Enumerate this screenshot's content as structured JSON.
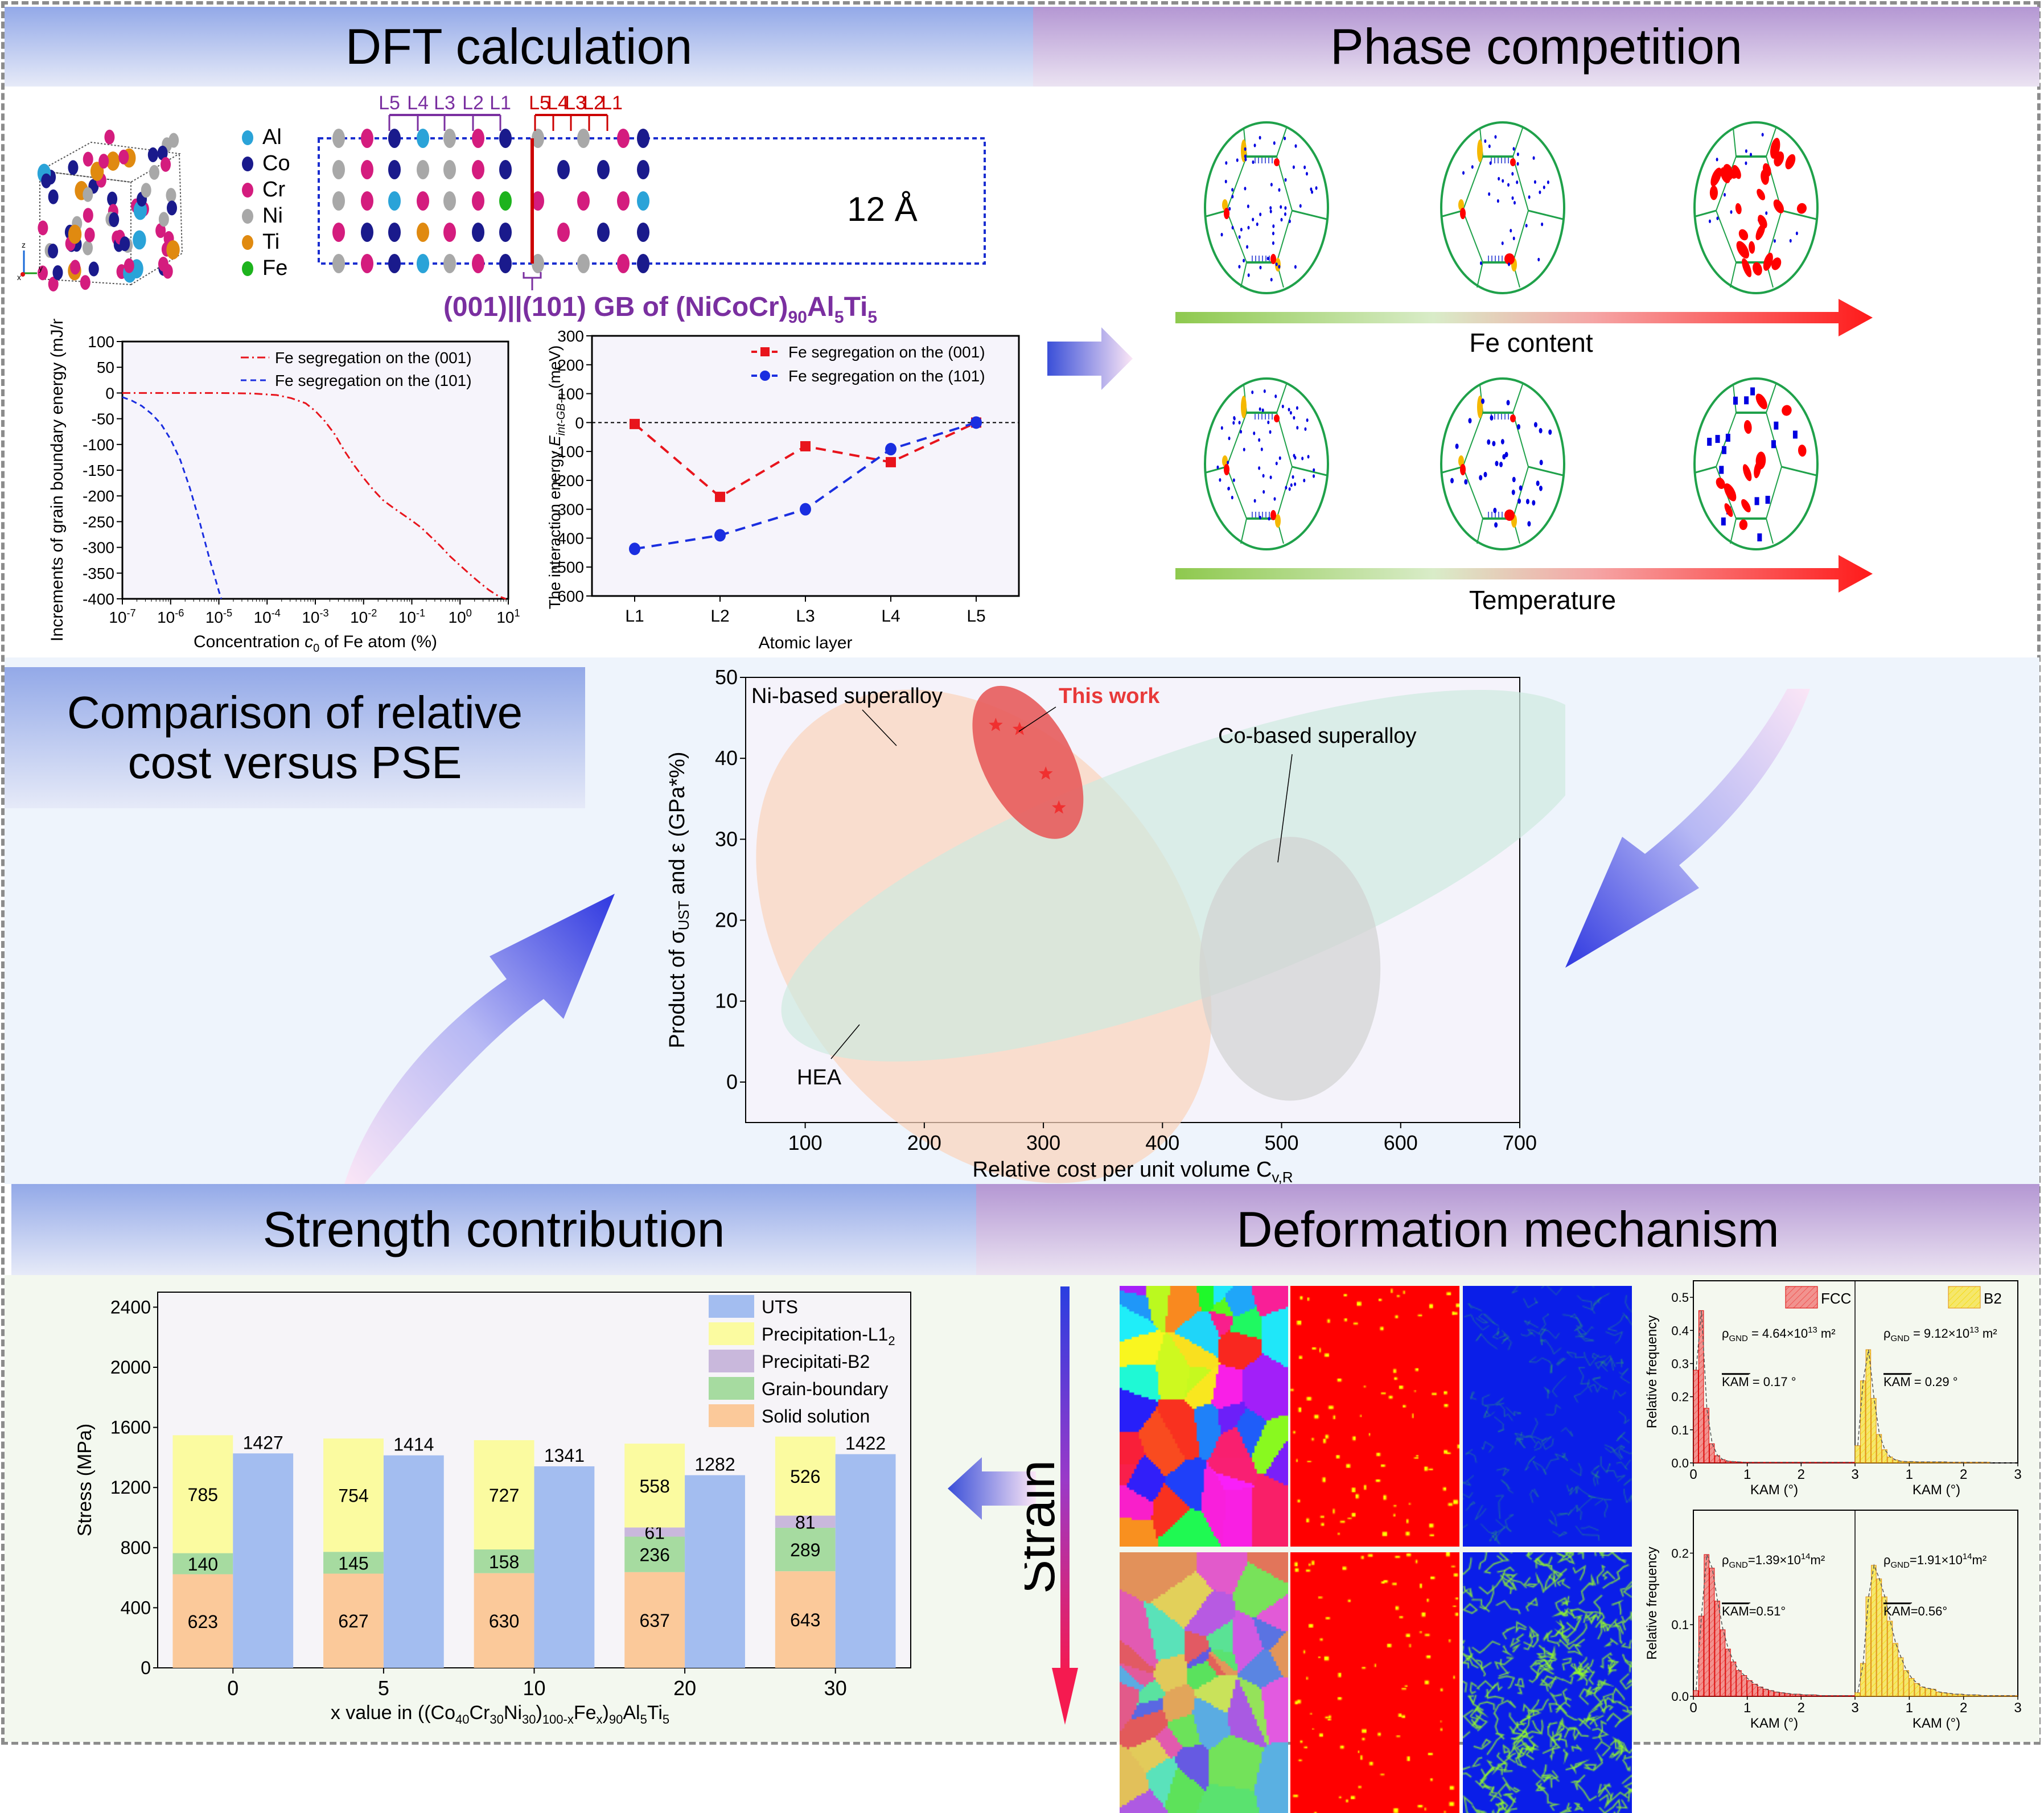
{
  "headers": {
    "dft": "DFT calculation",
    "phase": "Phase competition",
    "comparison_line1": "Comparison of relative",
    "comparison_line2": "cost versus PSE",
    "strength": "Strength contribution",
    "deformation": "Deformation mechanism"
  },
  "colors": {
    "header_blue_top": "#93a9e8",
    "header_purple_top": "#b497d3",
    "grain_boundary": "#1fa14a",
    "l12_precipitate": "#0000e0",
    "b2_precipitate": "#ff0000",
    "segregation": "#f5b800"
  },
  "dft": {
    "elements": [
      {
        "name": "Al",
        "color": "#2aa3d8"
      },
      {
        "name": "Co",
        "color": "#1a1a8c"
      },
      {
        "name": "Cr",
        "color": "#d41c7e"
      },
      {
        "name": "Ni",
        "color": "#a8a8a8"
      },
      {
        "name": "Ti",
        "color": "#e08a10"
      },
      {
        "name": "Fe",
        "color": "#1db31d"
      }
    ],
    "layers_left": [
      "L5",
      "L4",
      "L3",
      "L2",
      "L1"
    ],
    "layers_right": [
      "L5",
      "L4",
      "L3",
      "L2",
      "L1"
    ],
    "vacuum_label": "12 Å",
    "gb_title": "(001)||(101) GB of (NiCoCr)",
    "gb_sub1": "90",
    "gb_mid": "Al",
    "gb_sub2": "5",
    "gb_end": "Ti",
    "gb_sub3": "5",
    "axis_labels": {
      "x": "x",
      "y": "y",
      "z": "z"
    }
  },
  "phase": {
    "row1_label": "Fe content",
    "row2_label": "Temperature"
  },
  "deformation": {
    "strain_label": "Strain"
  },
  "chart_data": [
    {
      "id": "gb-energy",
      "type": "line",
      "title": "",
      "xlabel": "Concentration c0 of Fe atom (%)",
      "xlabel_parts": [
        "Concentration ",
        "c",
        "0",
        " of Fe atom (%)"
      ],
      "ylabel": "Increments of grain boundary energy (mJ/m²)",
      "xscale": "log",
      "xlim_exp": [
        -7,
        1
      ],
      "xticks": [
        "10^-7",
        "10^-6",
        "10^-5",
        "10^-4",
        "10^-3",
        "10^-2",
        "10^-1",
        "10^0",
        "10^1"
      ],
      "ylim": [
        -400,
        100
      ],
      "yticks": [
        100,
        50,
        0,
        -50,
        -100,
        -150,
        -200,
        -250,
        -300,
        -350,
        -400
      ],
      "legend_position": "top-right",
      "series": [
        {
          "name": "Fe segregation on the (001)",
          "color": "#e8141c",
          "dash": "dashdot",
          "log10x": [
            -7,
            -6,
            -5,
            -4.3,
            -3.8,
            -3.5,
            -3.2,
            -3.0,
            -2.8,
            -2.6,
            -2.4,
            -2.2,
            -2.0,
            -1.8,
            -1.6,
            -1.4,
            -1.2,
            -1.0,
            -0.8,
            -0.6,
            -0.4,
            -0.2,
            0,
            0.2,
            0.4,
            0.6,
            0.8,
            0.95
          ],
          "y": [
            0,
            0,
            0,
            -1,
            -4,
            -10,
            -20,
            -35,
            -55,
            -80,
            -112,
            -140,
            -165,
            -188,
            -208,
            -222,
            -235,
            -248,
            -262,
            -280,
            -298,
            -318,
            -335,
            -352,
            -368,
            -383,
            -395,
            -400
          ]
        },
        {
          "name": "Fe segregation on the (101)",
          "color": "#1a2ee0",
          "dash": "dashed",
          "log10x": [
            -7,
            -6.8,
            -6.6,
            -6.4,
            -6.2,
            -6.0,
            -5.8,
            -5.6,
            -5.4,
            -5.2,
            -5.0,
            -4.95
          ],
          "y": [
            -8,
            -15,
            -25,
            -40,
            -60,
            -90,
            -130,
            -185,
            -250,
            -320,
            -385,
            -400
          ]
        }
      ]
    },
    {
      "id": "interaction-energy",
      "type": "line",
      "xlabel": "Atomic layer",
      "ylabel_prefix": "The interaction energy ",
      "ylabel_var": "E",
      "ylabel_sub": "int-GB-n",
      "ylabel_suffix": " (meV)",
      "categories": [
        "L1",
        "L2",
        "L3",
        "L4",
        "L5"
      ],
      "ylim": [
        -600,
        300
      ],
      "yticks": [
        300,
        200,
        100,
        0,
        -100,
        -200,
        -300,
        -400,
        -500,
        -600
      ],
      "legend_position": "top-right",
      "series": [
        {
          "name": "Fe segregation on the (001)",
          "color": "#e8141c",
          "marker": "square",
          "values": [
            -5,
            -257,
            -82,
            -137,
            0
          ]
        },
        {
          "name": "Fe segregation on the (101)",
          "color": "#1a2ee0",
          "marker": "circle",
          "values": [
            -437,
            -390,
            -300,
            -92,
            0
          ]
        }
      ]
    },
    {
      "id": "cost-vs-pse",
      "type": "scatter",
      "xlabel_main": "Relative cost per unit volume C",
      "xlabel_sub": "v,R",
      "ylabel": "Product of σUST and ε (GPa*%)",
      "ylabel_pre": "Product of σ",
      "ylabel_sub": "UST",
      "ylabel_post": " and ε (GPa*%)",
      "xlim": [
        50,
        700
      ],
      "ylim": [
        -5,
        50
      ],
      "xticks": [
        100,
        200,
        300,
        400,
        500,
        600,
        700
      ],
      "yticks": [
        0,
        10,
        20,
        30,
        40,
        50
      ],
      "regions": [
        {
          "name": "HEA",
          "color": "#fbd3bb",
          "cx": 250,
          "cy": 18,
          "rx_cost": 230,
          "ry_pse": 24,
          "angle_deg": 52
        },
        {
          "name": "Ni-based superalloy",
          "color": "#cfeadf",
          "cx": 420,
          "cy": 25.5,
          "rx_cost": 360,
          "ry_pse": 15,
          "angle_deg": -20
        },
        {
          "name": "Co-based superalloy",
          "color": "#d2d2d2",
          "cx": 507,
          "cy": 14,
          "rx_cost": 76,
          "ry_pse": 16.3,
          "angle_deg": 0
        },
        {
          "name": "This work",
          "color": "#e75c5c",
          "cx": 287,
          "cy": 39.5,
          "rx_cost": 70,
          "ry_pse": 5.5,
          "angle_deg": 62
        }
      ],
      "annotations": [
        {
          "text": "Ni-based superalloy",
          "color": "#000000"
        },
        {
          "text": "This work",
          "color": "#e83a3a"
        },
        {
          "text": "Co-based superalloy",
          "color": "#000000"
        },
        {
          "text": "HEA",
          "color": "#000000"
        }
      ],
      "points": [
        {
          "x": 260,
          "y": 44.1
        },
        {
          "x": 280,
          "y": 43.6
        },
        {
          "x": 302,
          "y": 38.1
        },
        {
          "x": 313,
          "y": 33.9
        }
      ]
    },
    {
      "id": "strength-contribution",
      "type": "bar",
      "xlabel": "x value in ((Co40Cr30Ni30)100-xFex)90Al5Ti5",
      "ylabel": "Stress (MPa)",
      "categories": [
        "0",
        "5",
        "10",
        "20",
        "30"
      ],
      "ylim": [
        0,
        2500
      ],
      "yticks": [
        0,
        400,
        800,
        1200,
        1600,
        2000,
        2400
      ],
      "legend_position": "top-right",
      "stack_series": [
        {
          "name": "Solid solution",
          "color": "#fbc99a",
          "values": [
            623,
            627,
            630,
            637,
            643
          ]
        },
        {
          "name": "Grain-boundary",
          "color": "#a6dba0",
          "values": [
            140,
            145,
            158,
            236,
            289
          ]
        },
        {
          "name": "Precipitati-B2",
          "color": "#c9b8dc",
          "values": [
            0,
            0,
            0,
            61,
            81
          ]
        },
        {
          "name": "Precipitation-L1",
          "sub": "2",
          "color": "#fbfba0",
          "values": [
            785,
            754,
            727,
            558,
            526
          ]
        }
      ],
      "uts_series": {
        "name": "UTS",
        "color": "#a3bdf0",
        "values": [
          1427,
          1414,
          1341,
          1282,
          1422
        ]
      }
    },
    {
      "id": "kam-top",
      "type": "bar",
      "ylabel": "Relative frequency",
      "xlabel": "KAM (°)",
      "panels": [
        {
          "legend": "FCC",
          "color": "#ef4040",
          "rho_pre": "ρ",
          "rho_sub": "GND",
          "rho_val": " = 4.64×10",
          "rho_exp": "13",
          "rho_unit": " m²",
          "kam_text": "KAM",
          "kam_val": " = 0.17 °",
          "bins": [
            0.28,
            0.46,
            0.165,
            0.058,
            0.022,
            0.01,
            0.005,
            0.004,
            0.003,
            0.002,
            0.002,
            0.002,
            0.002,
            0.002,
            0.002,
            0.002,
            0.002,
            0.002,
            0.002,
            0.002,
            0.002,
            0.002,
            0.002,
            0.002,
            0.002,
            0.002,
            0.002,
            0.002,
            0.002,
            0.002
          ]
        },
        {
          "legend": "B2",
          "color": "#f5d800",
          "rho_pre": "ρ",
          "rho_sub": "GND",
          "rho_val": " = 9.12×10",
          "rho_exp": "13",
          "rho_unit": " m²",
          "kam_text": "KAM",
          "kam_val": " = 0.29 °",
          "bins": [
            0.052,
            0.248,
            0.342,
            0.195,
            0.086,
            0.04,
            0.018,
            0.009,
            0.005,
            0.004,
            0.004,
            0.003,
            0.003,
            0.003,
            0.003,
            0.003,
            0.003,
            0.002,
            0.002,
            0.002,
            0.002,
            0.002,
            0.002,
            0.002,
            0.002,
            0,
            0,
            0,
            0,
            0
          ]
        }
      ],
      "xticks": [
        "0",
        "1",
        "2",
        "3"
      ],
      "xticks_right": [
        "1",
        "2",
        "3"
      ],
      "ylim": [
        0,
        0.55
      ],
      "yticks": [
        0.0,
        0.1,
        0.2,
        0.3,
        0.4,
        0.5
      ]
    },
    {
      "id": "kam-bottom",
      "type": "bar",
      "ylabel": "Relative frequency",
      "xlabel": "KAM (°)",
      "panels": [
        {
          "color": "#ef4040",
          "rho_pre": "ρ",
          "rho_sub": "GND",
          "rho_val": "=1.39×10",
          "rho_exp": "14",
          "rho_unit": "m²",
          "kam_text": "KAM",
          "kam_val": "=0.51°",
          "bins": [
            0.008,
            0.112,
            0.198,
            0.179,
            0.133,
            0.093,
            0.066,
            0.048,
            0.036,
            0.029,
            0.022,
            0.017,
            0.013,
            0.01,
            0.008,
            0.006,
            0.005,
            0.004,
            0.003,
            0.003,
            0.002,
            0.002,
            0.002,
            0.001,
            0.001,
            0.001,
            0.001,
            0.001,
            0.001,
            0.001
          ]
        },
        {
          "color": "#f5d800",
          "rho_pre": "ρ",
          "rho_sub": "GND",
          "rho_val": "=1.91×10",
          "rho_exp": "14",
          "rho_unit": "m²",
          "kam_text": "KAM",
          "kam_val": "=0.56°",
          "bins": [
            0.005,
            0.046,
            0.139,
            0.183,
            0.164,
            0.139,
            0.105,
            0.074,
            0.054,
            0.036,
            0.025,
            0.018,
            0.013,
            0.011,
            0.01,
            0.006,
            0.005,
            0.004,
            0.003,
            0.003,
            0.002,
            0.002,
            0.002,
            0.001,
            0.001,
            0.001,
            0.001,
            0.001,
            0.001,
            0.001
          ]
        }
      ],
      "xticks": [
        "0",
        "1",
        "2",
        "3"
      ],
      "xticks_right": [
        "1",
        "2",
        "3"
      ],
      "ylim": [
        0,
        0.26
      ],
      "yticks": [
        0.0,
        0.1,
        0.2
      ]
    }
  ]
}
